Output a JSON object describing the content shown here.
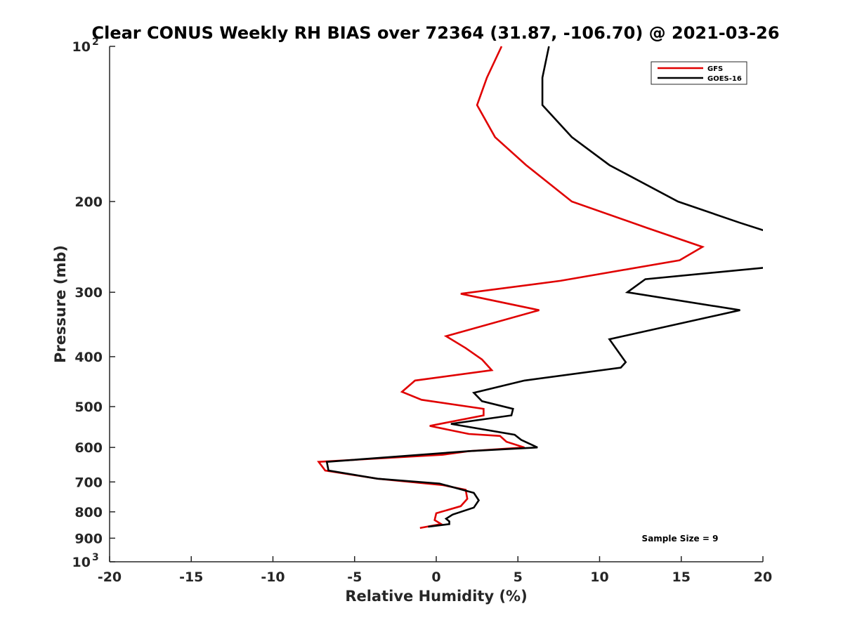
{
  "chart_data": {
    "type": "line",
    "title": "Clear CONUS Weekly RH BIAS over 72364 (31.87, -106.70) @ 2021-03-26",
    "xlabel": "Relative Humidity (%)",
    "ylabel": "Pressure (mb)",
    "xlim": [
      -20,
      20
    ],
    "ylim": [
      100,
      1000
    ],
    "y_scale": "log",
    "y_reversed": true,
    "grid": false,
    "x_ticks": [
      "-20",
      "-15",
      "-10",
      "-5",
      "0",
      "5",
      "10",
      "15",
      "20"
    ],
    "y_ticks": [
      {
        "value": 100,
        "label": "10",
        "sup": "2"
      },
      {
        "value": 200,
        "label": "200",
        "sup": ""
      },
      {
        "value": 300,
        "label": "300",
        "sup": ""
      },
      {
        "value": 400,
        "label": "400",
        "sup": ""
      },
      {
        "value": 500,
        "label": "500",
        "sup": ""
      },
      {
        "value": 600,
        "label": "600",
        "sup": ""
      },
      {
        "value": 700,
        "label": "700",
        "sup": ""
      },
      {
        "value": 800,
        "label": "800",
        "sup": ""
      },
      {
        "value": 900,
        "label": "900",
        "sup": ""
      },
      {
        "value": 1000,
        "label": "10",
        "sup": "3"
      }
    ],
    "legend_position": "top-right",
    "annotation": "Sample Size = 9",
    "series": [
      {
        "name": "GFS",
        "color": "#e00000",
        "points": [
          [
            4.0,
            100
          ],
          [
            3.1,
            115
          ],
          [
            2.5,
            130
          ],
          [
            3.6,
            150
          ],
          [
            5.5,
            170
          ],
          [
            8.3,
            200
          ],
          [
            12.9,
            225
          ],
          [
            16.3,
            245
          ],
          [
            14.9,
            260
          ],
          [
            7.6,
            285
          ],
          [
            1.5,
            302
          ],
          [
            6.3,
            325
          ],
          [
            0.6,
            365
          ],
          [
            1.8,
            385
          ],
          [
            2.8,
            405
          ],
          [
            3.4,
            425
          ],
          [
            -1.3,
            445
          ],
          [
            -2.1,
            468
          ],
          [
            -0.9,
            485
          ],
          [
            2.9,
            505
          ],
          [
            2.9,
            520
          ],
          [
            -0.4,
            545
          ],
          [
            2.0,
            565
          ],
          [
            3.9,
            570
          ],
          [
            4.3,
            585
          ],
          [
            5.4,
            600
          ],
          [
            2.0,
            610
          ],
          [
            0.4,
            620
          ],
          [
            -7.2,
            640
          ],
          [
            -6.8,
            665
          ],
          [
            -3.6,
            690
          ],
          [
            0.4,
            710
          ],
          [
            1.8,
            725
          ],
          [
            1.9,
            755
          ],
          [
            1.5,
            780
          ],
          [
            0.0,
            805
          ],
          [
            -0.1,
            830
          ],
          [
            0.3,
            845
          ],
          [
            -1.0,
            860
          ]
        ]
      },
      {
        "name": "GOES-16",
        "color": "#000000",
        "points": [
          [
            6.9,
            100
          ],
          [
            6.5,
            115
          ],
          [
            6.5,
            130
          ],
          [
            8.3,
            150
          ],
          [
            10.6,
            170
          ],
          [
            14.8,
            200
          ],
          [
            18.6,
            220
          ],
          [
            20.5,
            230
          ],
          [
            20.5,
            268
          ],
          [
            12.8,
            283
          ],
          [
            11.7,
            300
          ],
          [
            18.6,
            325
          ],
          [
            10.6,
            370
          ],
          [
            11.6,
            410
          ],
          [
            11.3,
            420
          ],
          [
            5.4,
            445
          ],
          [
            2.3,
            470
          ],
          [
            2.8,
            488
          ],
          [
            4.7,
            505
          ],
          [
            4.6,
            520
          ],
          [
            0.9,
            540
          ],
          [
            4.8,
            567
          ],
          [
            5.2,
            580
          ],
          [
            6.2,
            600
          ],
          [
            2.0,
            610
          ],
          [
            -6.7,
            640
          ],
          [
            -6.6,
            665
          ],
          [
            -3.6,
            690
          ],
          [
            0.2,
            705
          ],
          [
            2.3,
            735
          ],
          [
            2.6,
            760
          ],
          [
            2.3,
            785
          ],
          [
            1.0,
            810
          ],
          [
            0.6,
            825
          ],
          [
            0.8,
            835
          ],
          [
            0.8,
            845
          ],
          [
            -0.5,
            855
          ]
        ]
      }
    ]
  }
}
